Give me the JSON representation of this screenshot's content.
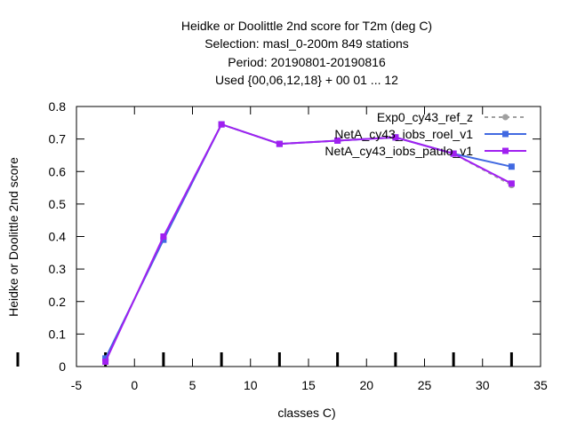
{
  "chart_data": {
    "type": "line",
    "title_lines": [
      "Heidke or Doolittle 2nd score  for T2m (deg C)",
      "Selection: masl_0-200m    849 stations",
      "Period: 20190801-20190816",
      "Used {00,06,12,18} + 00 01 ... 12"
    ],
    "xlabel": "classes C)",
    "ylabel": "Heidke or Doolittle 2nd score",
    "xlim": [
      -5,
      35
    ],
    "ylim": [
      0,
      0.8
    ],
    "xticks": [
      -5,
      0,
      5,
      10,
      15,
      20,
      25,
      30,
      35
    ],
    "yticks": [
      0,
      0.1,
      0.2,
      0.3,
      0.4,
      0.5,
      0.6,
      0.7,
      0.8
    ],
    "x": [
      -2.5,
      2.5,
      7.5,
      12.5,
      17.5,
      22.5,
      27.5,
      32.5
    ],
    "series": [
      {
        "name": "Exp0_cy43_ref_z",
        "color": "#a0a0a0",
        "dashed": true,
        "values": [
          0.02,
          0.395,
          0.745,
          0.685,
          0.695,
          0.705,
          0.655,
          0.558
        ]
      },
      {
        "name": "NetA_cy43_iobs_roel_v1",
        "color": "#4169e1",
        "dashed": false,
        "values": [
          0.025,
          0.39,
          0.745,
          0.685,
          0.695,
          0.705,
          0.655,
          0.615
        ]
      },
      {
        "name": "NetA_cy43_iobs_paulo_v1",
        "color": "#a020f0",
        "dashed": false,
        "values": [
          0.015,
          0.4,
          0.745,
          0.685,
          0.695,
          0.705,
          0.655,
          0.563
        ]
      }
    ],
    "legend_position": "top-right",
    "grid": false
  }
}
